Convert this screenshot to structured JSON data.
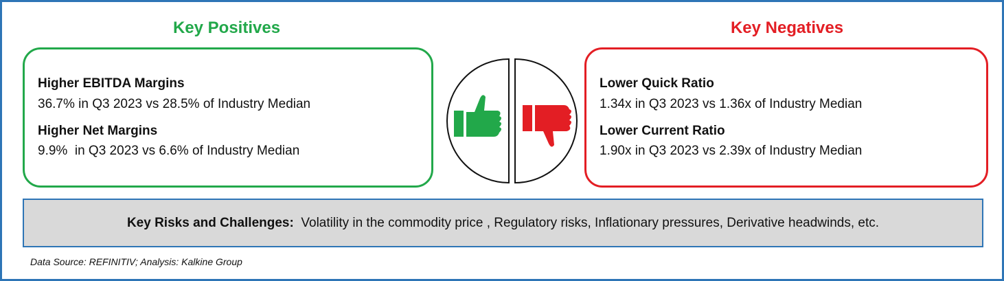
{
  "positives": {
    "title": "Key Positives",
    "items": [
      {
        "heading": "Higher EBITDA Margins",
        "detail": "36.7% in Q3 2023 vs 28.5% of Industry Median"
      },
      {
        "heading": "Higher Net Margins",
        "detail": "9.9%  in Q3 2023 vs 6.6% of Industry Median"
      }
    ]
  },
  "negatives": {
    "title": "Key Negatives",
    "items": [
      {
        "heading": "Lower Quick Ratio",
        "detail": "1.34x in Q3 2023 vs 1.36x of Industry Median"
      },
      {
        "heading": "Lower Current Ratio",
        "detail": "1.90x in Q3 2023 vs 2.39x of Industry Median"
      }
    ]
  },
  "risks": {
    "label": "Key Risks and Challenges:",
    "text": "Volatility in the commodity price , Regulatory risks, Inflationary pressures, Derivative headwinds, etc."
  },
  "source": "Data Source: REFINITIV; Analysis: Kalkine Group"
}
